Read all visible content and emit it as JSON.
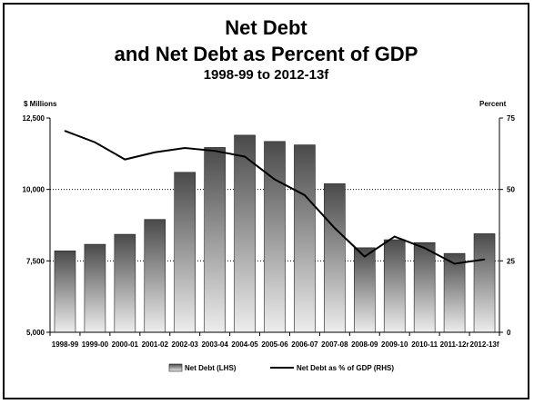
{
  "chart_data": {
    "type": "bar",
    "title": "Net Debt",
    "subtitle": "and Net Debt as Percent of GDP",
    "subtitle2": "1998-99 to 2012-13f",
    "ylabel_left": "$ Millions",
    "ylabel_right": "Percent",
    "ylim_left": [
      5000,
      12500
    ],
    "ylim_right": [
      0,
      75
    ],
    "yticks_left": [
      "5,000",
      "7,500",
      "10,000",
      "12,500"
    ],
    "yticks_right": [
      "0",
      "25",
      "50",
      "75"
    ],
    "categories": [
      "1998-99",
      "1999-00",
      "2000-01",
      "2001-02",
      "2002-03",
      "2003-04",
      "2004-05",
      "2005-06",
      "2006-07",
      "2007-08",
      "2008-09",
      "2009-10",
      "2010-11",
      "2011-12r",
      "2012-13f"
    ],
    "series": [
      {
        "name": "Net Debt (LHS)",
        "type": "bar",
        "axis": "left",
        "values": [
          7850,
          8080,
          8430,
          8950,
          10600,
          11470,
          11900,
          11680,
          11560,
          10200,
          7960,
          8240,
          8140,
          7760,
          8450
        ]
      },
      {
        "name": "Net Debt as % of GDP (RHS)",
        "type": "line",
        "axis": "right",
        "values": [
          70.5,
          66.5,
          60.5,
          63.0,
          64.5,
          63.5,
          61.5,
          53.5,
          48.0,
          36.5,
          26.5,
          33.5,
          29.5,
          24.0,
          25.5
        ]
      }
    ],
    "grid": "dotted horizontal at 7,500 and 10,000",
    "legend_position": "bottom"
  }
}
